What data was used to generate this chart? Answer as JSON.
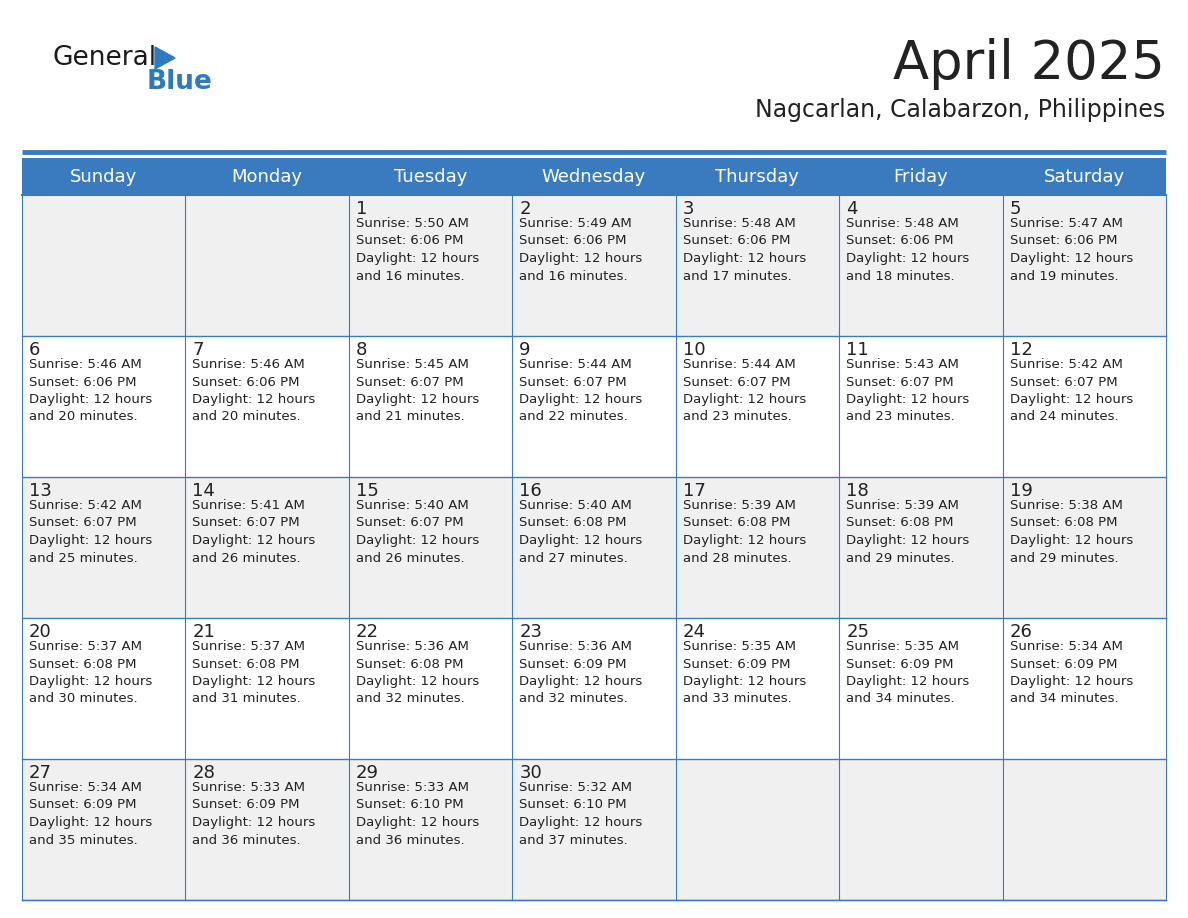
{
  "title": "April 2025",
  "subtitle": "Nagcarlan, Calabarzon, Philippines",
  "header_color": "#3A7BBF",
  "header_text_color": "#FFFFFF",
  "cell_bg_odd": "#F0F0F0",
  "cell_bg_even": "#FFFFFF",
  "border_color": "#3A7BBF",
  "text_color": "#222222",
  "days_of_week": [
    "Sunday",
    "Monday",
    "Tuesday",
    "Wednesday",
    "Thursday",
    "Friday",
    "Saturday"
  ],
  "calendar_data": [
    [
      "",
      "",
      "1\nSunrise: 5:50 AM\nSunset: 6:06 PM\nDaylight: 12 hours\nand 16 minutes.",
      "2\nSunrise: 5:49 AM\nSunset: 6:06 PM\nDaylight: 12 hours\nand 16 minutes.",
      "3\nSunrise: 5:48 AM\nSunset: 6:06 PM\nDaylight: 12 hours\nand 17 minutes.",
      "4\nSunrise: 5:48 AM\nSunset: 6:06 PM\nDaylight: 12 hours\nand 18 minutes.",
      "5\nSunrise: 5:47 AM\nSunset: 6:06 PM\nDaylight: 12 hours\nand 19 minutes."
    ],
    [
      "6\nSunrise: 5:46 AM\nSunset: 6:06 PM\nDaylight: 12 hours\nand 20 minutes.",
      "7\nSunrise: 5:46 AM\nSunset: 6:06 PM\nDaylight: 12 hours\nand 20 minutes.",
      "8\nSunrise: 5:45 AM\nSunset: 6:07 PM\nDaylight: 12 hours\nand 21 minutes.",
      "9\nSunrise: 5:44 AM\nSunset: 6:07 PM\nDaylight: 12 hours\nand 22 minutes.",
      "10\nSunrise: 5:44 AM\nSunset: 6:07 PM\nDaylight: 12 hours\nand 23 minutes.",
      "11\nSunrise: 5:43 AM\nSunset: 6:07 PM\nDaylight: 12 hours\nand 23 minutes.",
      "12\nSunrise: 5:42 AM\nSunset: 6:07 PM\nDaylight: 12 hours\nand 24 minutes."
    ],
    [
      "13\nSunrise: 5:42 AM\nSunset: 6:07 PM\nDaylight: 12 hours\nand 25 minutes.",
      "14\nSunrise: 5:41 AM\nSunset: 6:07 PM\nDaylight: 12 hours\nand 26 minutes.",
      "15\nSunrise: 5:40 AM\nSunset: 6:07 PM\nDaylight: 12 hours\nand 26 minutes.",
      "16\nSunrise: 5:40 AM\nSunset: 6:08 PM\nDaylight: 12 hours\nand 27 minutes.",
      "17\nSunrise: 5:39 AM\nSunset: 6:08 PM\nDaylight: 12 hours\nand 28 minutes.",
      "18\nSunrise: 5:39 AM\nSunset: 6:08 PM\nDaylight: 12 hours\nand 29 minutes.",
      "19\nSunrise: 5:38 AM\nSunset: 6:08 PM\nDaylight: 12 hours\nand 29 minutes."
    ],
    [
      "20\nSunrise: 5:37 AM\nSunset: 6:08 PM\nDaylight: 12 hours\nand 30 minutes.",
      "21\nSunrise: 5:37 AM\nSunset: 6:08 PM\nDaylight: 12 hours\nand 31 minutes.",
      "22\nSunrise: 5:36 AM\nSunset: 6:08 PM\nDaylight: 12 hours\nand 32 minutes.",
      "23\nSunrise: 5:36 AM\nSunset: 6:09 PM\nDaylight: 12 hours\nand 32 minutes.",
      "24\nSunrise: 5:35 AM\nSunset: 6:09 PM\nDaylight: 12 hours\nand 33 minutes.",
      "25\nSunrise: 5:35 AM\nSunset: 6:09 PM\nDaylight: 12 hours\nand 34 minutes.",
      "26\nSunrise: 5:34 AM\nSunset: 6:09 PM\nDaylight: 12 hours\nand 34 minutes."
    ],
    [
      "27\nSunrise: 5:34 AM\nSunset: 6:09 PM\nDaylight: 12 hours\nand 35 minutes.",
      "28\nSunrise: 5:33 AM\nSunset: 6:09 PM\nDaylight: 12 hours\nand 36 minutes.",
      "29\nSunrise: 5:33 AM\nSunset: 6:10 PM\nDaylight: 12 hours\nand 36 minutes.",
      "30\nSunrise: 5:32 AM\nSunset: 6:10 PM\nDaylight: 12 hours\nand 37 minutes.",
      "",
      "",
      ""
    ]
  ],
  "n_cols": 7,
  "n_rows": 5,
  "logo_text_general": "General",
  "logo_text_blue": "Blue",
  "logo_color_general": "#1a1a1a",
  "logo_color_blue": "#2E7ABF",
  "logo_triangle_color": "#2E7ABF",
  "title_fontsize": 38,
  "subtitle_fontsize": 17,
  "header_fontsize": 13,
  "date_fontsize": 13,
  "cell_fontsize": 9.5
}
